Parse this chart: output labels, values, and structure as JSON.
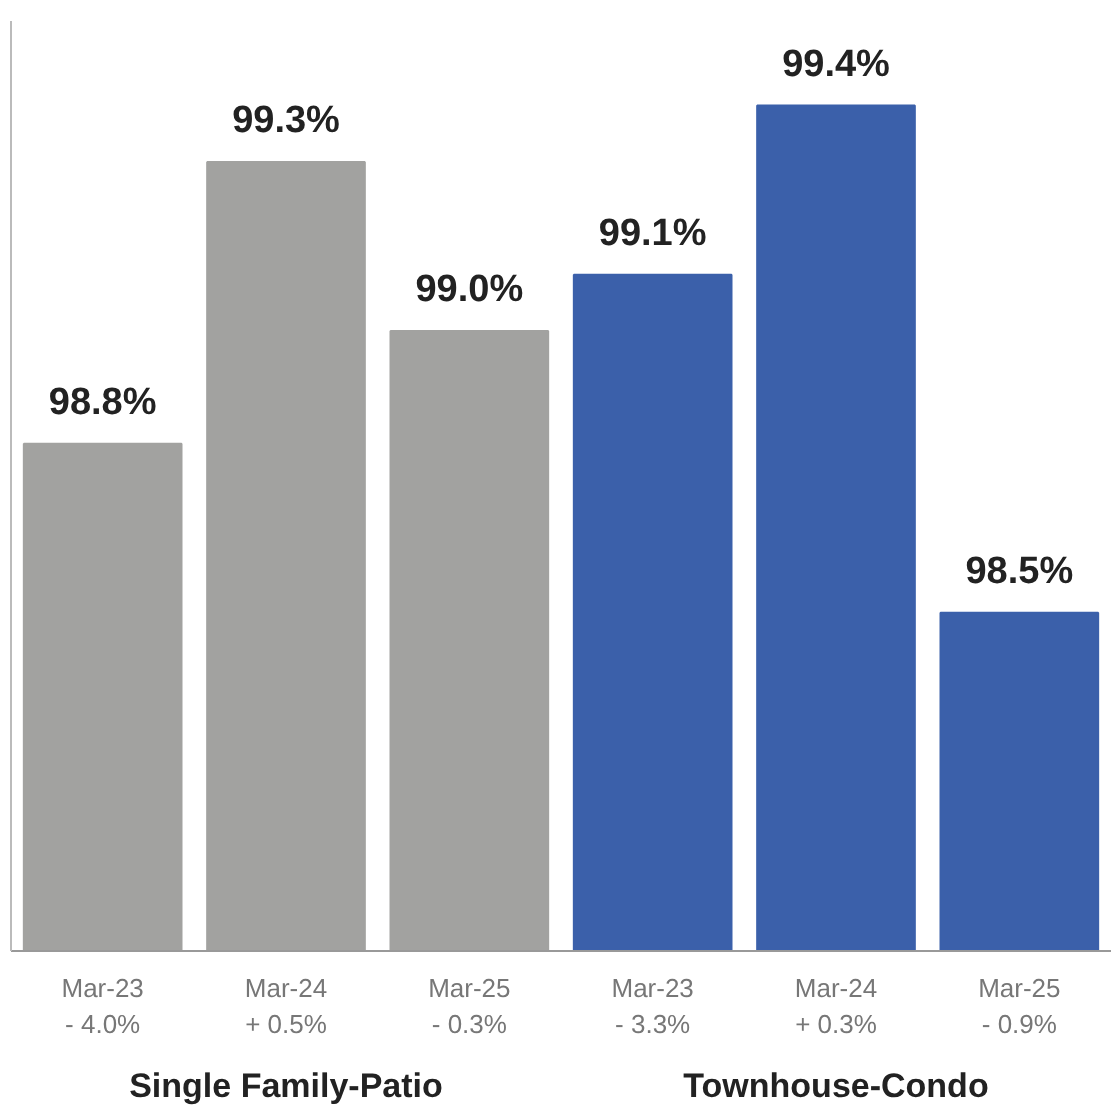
{
  "chart_data": {
    "type": "bar",
    "categories": [
      "Mar-23\n- 4.0%",
      "Mar-24\n+ 0.5%",
      "Mar-25\n- 0.3%",
      "Mar-23\n- 3.3%",
      "Mar-24\n+ 0.3%",
      "Mar-25\n- 0.9%"
    ],
    "values": [
      98.8,
      99.3,
      99.0,
      99.1,
      99.4,
      98.5
    ],
    "value_labels": [
      "98.8%",
      "99.3%",
      "99.0%",
      "99.1%",
      "99.4%",
      "98.5%"
    ],
    "colors": [
      "#a2a2a0",
      "#a2a2a0",
      "#a2a2a0",
      "#3b60aa",
      "#3b60aa",
      "#3b60aa"
    ],
    "ylim": [
      97.9,
      99.55
    ],
    "tick_labels": "x",
    "grid": false,
    "annotations": [
      "Single Family-Patio",
      "Townhouse-Condo"
    ]
  }
}
